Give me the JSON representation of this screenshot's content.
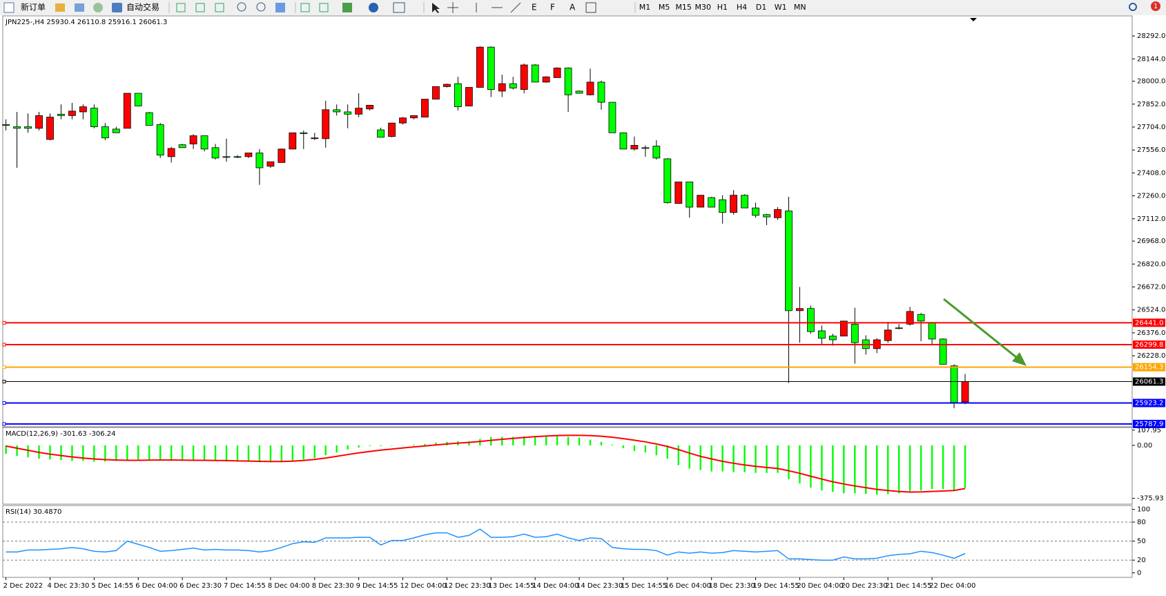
{
  "toolbar": {
    "new_order": "新订单",
    "auto_trading": "自动交易",
    "timeframes": [
      "M1",
      "M5",
      "M15",
      "M30",
      "H1",
      "H4",
      "D1",
      "W1",
      "MN"
    ],
    "notifications": "1"
  },
  "chart_data": [
    {
      "type": "candlestick",
      "title": "JPN225-,H4  25930.4 26110.8 25916.1 26061.3",
      "up_color": "#ff0000",
      "down_color": "#00ff00",
      "categories": [
        "2 Dec 2022",
        null,
        null,
        null,
        "4 Dec 23:30",
        null,
        null,
        null,
        "5 Dec 14:55",
        null,
        null,
        null,
        "6 Dec 04:00",
        null,
        null,
        null,
        "6 Dec 23:30",
        null,
        null,
        null,
        "7 Dec 14:55",
        null,
        null,
        null,
        "8 Dec 04:00",
        null,
        null,
        null,
        "8 Dec 23:30",
        null,
        null,
        null,
        "9 Dec 14:55",
        null,
        null,
        null,
        "12 Dec 04:00",
        null,
        null,
        null,
        "12 Dec 23:30",
        null,
        null,
        null,
        "13 Dec 14:55",
        null,
        null,
        null,
        "14 Dec 04:00",
        null,
        null,
        null,
        "14 Dec 23:30",
        null,
        null,
        null,
        "15 Dec 14:55",
        null,
        null,
        null,
        "16 Dec 04:00",
        null,
        null,
        null,
        "18 Dec 23:30",
        null,
        null,
        null,
        "19 Dec 14:55",
        null,
        null,
        null,
        "20 Dec 04:00",
        null,
        null,
        null,
        "20 Dec 23:30",
        null,
        null,
        null,
        "21 Dec 14:55",
        null,
        null,
        null,
        "22 Dec 04:00",
        null,
        null,
        null
      ],
      "open": [
        27720,
        27706,
        27706,
        27696,
        27624,
        27787,
        27778,
        27802,
        27826,
        27706,
        27691,
        27696,
        27922,
        27797,
        27720,
        27513,
        27590,
        27595,
        27648,
        27571,
        27513,
        27513,
        27513,
        27537,
        27451,
        27475,
        27562,
        27667,
        27629,
        27629,
        27816,
        27802,
        27787,
        27821,
        27686,
        27643,
        27730,
        27763,
        27768,
        27884,
        27965,
        27984,
        27840,
        27960,
        28220,
        27936,
        27984,
        27946,
        28105,
        27994,
        28023,
        28085,
        27936,
        27912,
        27994,
        27864,
        27667,
        27562,
        27571,
        27581,
        27499,
        27211,
        27350,
        27187,
        27249,
        27235,
        27153,
        27264,
        27182,
        27139,
        27119,
        27163,
        26519,
        26533,
        26389,
        26355,
        26355,
        26432,
        26331,
        26274,
        26326,
        26408,
        26432,
        26495,
        26442,
        26336,
        26163,
        25930.4
      ],
      "high": [
        27754,
        27802,
        27792,
        27802,
        27792,
        27850,
        27860,
        27850,
        27850,
        27730,
        27706,
        27922,
        27922,
        27802,
        27730,
        27576,
        27595,
        27658,
        27648,
        27595,
        27629,
        27523,
        27537,
        27562,
        27480,
        27566,
        27667,
        27682,
        27667,
        27874,
        27850,
        27850,
        27922,
        27845,
        27700,
        27730,
        27768,
        27778,
        27884,
        27965,
        27984,
        28028,
        27960,
        28225,
        28225,
        28042,
        28028,
        28114,
        28110,
        28032,
        28090,
        28090,
        27940,
        28081,
        28004,
        27864,
        27670,
        27643,
        27586,
        27619,
        27504,
        27350,
        27350,
        27264,
        27254,
        27264,
        27297,
        27270,
        27216,
        27144,
        27187,
        27254,
        26672,
        26552,
        26423,
        26370,
        26452,
        26538,
        26360,
        26341,
        26447,
        26432,
        26543,
        26504,
        26447,
        26340,
        26173,
        26110.8
      ],
      "low": [
        27682,
        27441,
        27667,
        27682,
        27619,
        27754,
        27754,
        27754,
        27696,
        27619,
        27667,
        27696,
        27840,
        27715,
        27504,
        27475,
        27571,
        27562,
        27547,
        27494,
        27480,
        27504,
        27504,
        27331,
        27441,
        27475,
        27562,
        27562,
        27620,
        27571,
        27778,
        27696,
        27768,
        27811,
        27638,
        27638,
        27720,
        27754,
        27768,
        27884,
        27960,
        27811,
        27840,
        27960,
        27898,
        27898,
        27946,
        27922,
        27994,
        27990,
        28023,
        27802,
        27922,
        27908,
        27816,
        27667,
        27562,
        27552,
        27513,
        27494,
        27211,
        27211,
        27119,
        27187,
        27187,
        27081,
        27139,
        27182,
        27119,
        27071,
        27105,
        26052,
        26312,
        26370,
        26297,
        26293,
        26355,
        26177,
        26235,
        26245,
        26312,
        26399,
        26423,
        26322,
        26302,
        26173,
        25889,
        25916.1
      ],
      "close": [
        27715,
        27696,
        27696,
        27778,
        27768,
        27778,
        27807,
        27835,
        27706,
        27634,
        27667,
        27922,
        27840,
        27715,
        27523,
        27566,
        27571,
        27648,
        27562,
        27504,
        27509,
        27509,
        27537,
        27441,
        27480,
        27562,
        27667,
        27662,
        27634,
        27816,
        27802,
        27787,
        27826,
        27845,
        27638,
        27730,
        27763,
        27778,
        27884,
        27965,
        27980,
        27835,
        27960,
        28220,
        27946,
        27984,
        27956,
        28105,
        27994,
        28028,
        28085,
        27912,
        27922,
        27994,
        27864,
        27667,
        27562,
        27586,
        27566,
        27504,
        27216,
        27350,
        27187,
        27264,
        27187,
        27153,
        27264,
        27182,
        27134,
        27124,
        27172,
        26519,
        26533,
        26384,
        26341,
        26331,
        26452,
        26312,
        26274,
        26331,
        26394,
        26404,
        26514,
        26452,
        26336,
        26173,
        25927,
        26061.3
      ],
      "ylim": [
        25774,
        28417
      ],
      "yticks": [
        {
          "value": 28292,
          "label": "28292.0"
        },
        {
          "value": 28144,
          "label": "28144.0"
        },
        {
          "value": 28000,
          "label": "28000.0"
        },
        {
          "value": 27852,
          "label": "27852.0"
        },
        {
          "value": 27704,
          "label": "27704.0"
        },
        {
          "value": 27556,
          "label": "27556.0"
        },
        {
          "value": 27408,
          "label": "27408.0"
        },
        {
          "value": 27260,
          "label": "27260.0"
        },
        {
          "value": 27112,
          "label": "27112.0"
        },
        {
          "value": 26968,
          "label": "26968.0"
        },
        {
          "value": 26820,
          "label": "26820.0"
        },
        {
          "value": 26672,
          "label": "26672.0"
        },
        {
          "value": 26524,
          "label": "26524.0"
        },
        {
          "value": 26376,
          "label": "26376.0"
        },
        {
          "value": 26228,
          "label": "26228.0"
        }
      ],
      "lines": [
        {
          "value": 26441,
          "label": "26441.0",
          "color": "#ff0000"
        },
        {
          "value": 26299.8,
          "color": "#ff0000"
        },
        {
          "value": 26154.3,
          "color": "#ffa500"
        },
        {
          "value": 26061.3,
          "color": "#000000"
        },
        {
          "value": 25923.2,
          "color": "#0000ff"
        },
        {
          "value": 25787.9,
          "color": "#0000ff"
        }
      ]
    },
    {
      "type": "combo",
      "title": "MACD(12,26,9) -301.63 -306.24",
      "series": [
        {
          "kind": "bar",
          "color": "#00ff00",
          "values": [
            -60,
            -75,
            -85,
            -95,
            -100,
            -105,
            -110,
            -110,
            -115,
            -115,
            -110,
            -110,
            -100,
            -100,
            -105,
            -110,
            -110,
            -110,
            -110,
            -110,
            -115,
            -115,
            -115,
            -120,
            -120,
            -115,
            -110,
            -100,
            -90,
            -70,
            -50,
            -30,
            -15,
            -5,
            -5,
            -3,
            0,
            5,
            10,
            20,
            25,
            30,
            30,
            45,
            60,
            60,
            60,
            65,
            65,
            65,
            65,
            60,
            55,
            40,
            25,
            5,
            -20,
            -40,
            -50,
            -70,
            -95,
            -140,
            -165,
            -175,
            -185,
            -185,
            -190,
            -190,
            -195,
            -195,
            -195,
            -240,
            -270,
            -300,
            -320,
            -330,
            -340,
            -340,
            -345,
            -350,
            -345,
            -340,
            -325,
            -320,
            -310,
            -310,
            -320,
            -301.63
          ]
        },
        {
          "kind": "line",
          "color": "#ff0000",
          "values": [
            -5,
            -20,
            -35,
            -50,
            -62,
            -72,
            -82,
            -90,
            -96,
            -101,
            -104,
            -106,
            -106,
            -105,
            -104,
            -104,
            -105,
            -106,
            -106,
            -107,
            -108,
            -110,
            -111,
            -113,
            -114,
            -114,
            -112,
            -107,
            -100,
            -90,
            -78,
            -65,
            -53,
            -43,
            -34,
            -26,
            -18,
            -11,
            -4,
            3,
            10,
            16,
            21,
            28,
            36,
            43,
            50,
            56,
            62,
            66,
            70,
            71,
            71,
            69,
            65,
            58,
            48,
            37,
            25,
            10,
            -8,
            -30,
            -55,
            -78,
            -96,
            -113,
            -127,
            -139,
            -149,
            -157,
            -164,
            -180,
            -198,
            -219,
            -239,
            -258,
            -274,
            -288,
            -300,
            -312,
            -320,
            -327,
            -331,
            -330,
            -327,
            -324,
            -320,
            -306.24
          ]
        }
      ],
      "ylim": [
        -412,
        122
      ],
      "yticks": [
        107.95,
        {
          "value": 0,
          "label": "0.00"
        },
        -375.93
      ]
    },
    {
      "type": "line",
      "title": "RSI(14) 30.4870",
      "series": [
        {
          "color": "#1e90ff",
          "values": [
            33,
            33,
            36,
            36,
            37,
            38,
            40,
            38,
            34,
            33,
            35,
            50,
            45,
            40,
            34,
            35,
            37,
            39,
            36,
            37,
            36,
            36,
            35,
            33,
            35,
            40,
            46,
            49,
            48,
            55,
            55,
            55,
            56,
            56,
            44,
            51,
            51,
            55,
            60,
            63,
            63,
            56,
            59,
            69,
            56,
            56,
            57,
            61,
            56,
            57,
            61,
            55,
            51,
            55,
            54,
            40,
            38,
            37,
            37,
            35,
            28,
            33,
            31,
            33,
            31,
            32,
            35,
            34,
            33,
            34,
            35,
            22,
            22,
            21,
            20,
            20,
            25,
            22,
            22,
            23,
            27,
            29,
            30,
            34,
            32,
            28,
            23,
            30.487
          ]
        }
      ],
      "ylim": [
        -6,
        105
      ],
      "yticks": [
        100,
        80,
        50,
        20,
        0
      ],
      "levels": [
        80,
        50,
        20
      ]
    }
  ]
}
